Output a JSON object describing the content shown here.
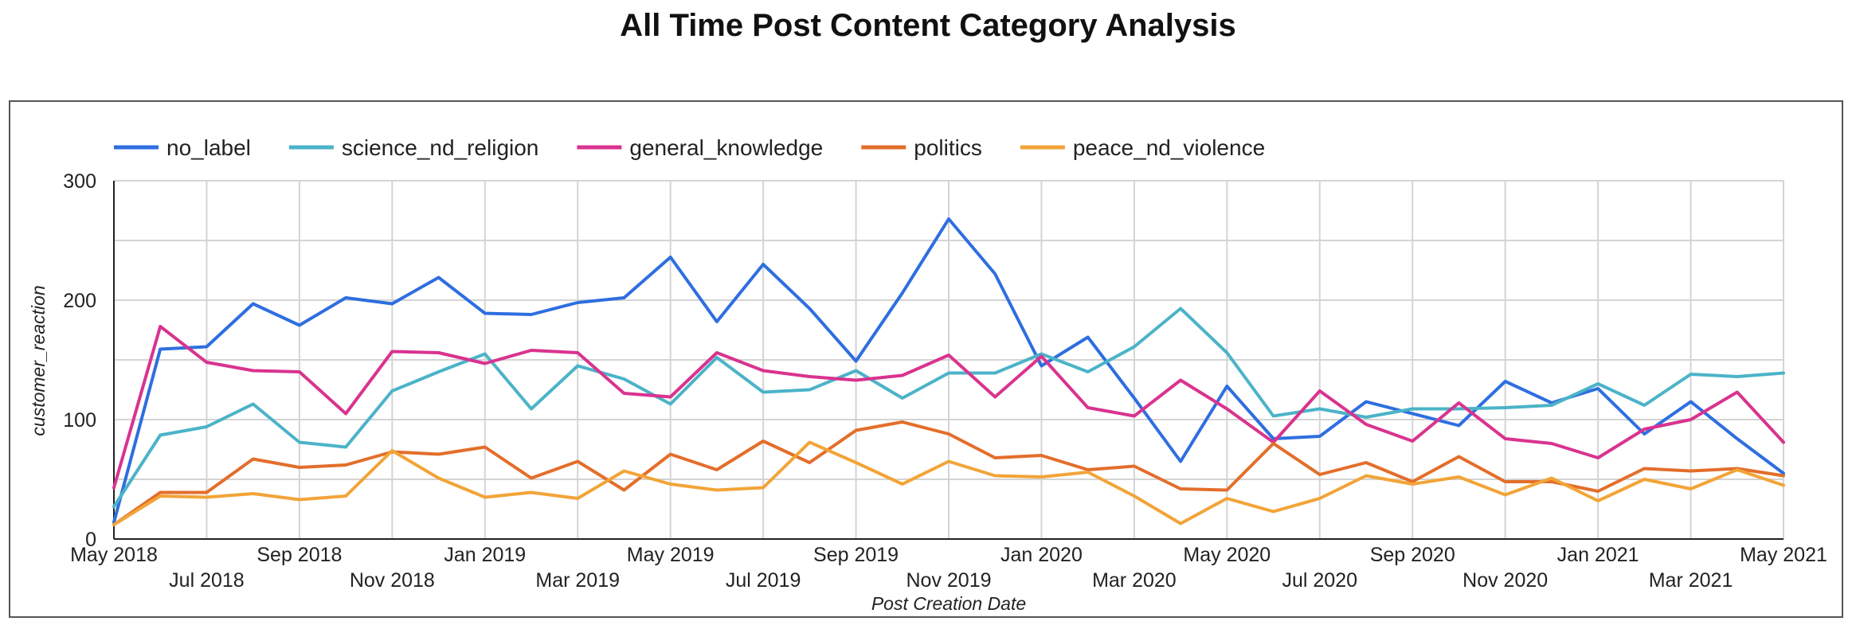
{
  "chart_data": {
    "type": "line",
    "title": "All Time Post Content Category Analysis",
    "xlabel": "Post Creation Date",
    "ylabel": "customer_reaction",
    "ylim": [
      0,
      300
    ],
    "yticks": [
      "0",
      "100",
      "200",
      "300"
    ],
    "grid": true,
    "legend_position": "top-left",
    "x": [
      "2018-05",
      "2018-06",
      "2018-07",
      "2018-08",
      "2018-09",
      "2018-10",
      "2018-11",
      "2018-12",
      "2019-01",
      "2019-02",
      "2019-03",
      "2019-04",
      "2019-05",
      "2019-06",
      "2019-07",
      "2019-08",
      "2019-09",
      "2019-10",
      "2019-11",
      "2019-12",
      "2020-01",
      "2020-02",
      "2020-03",
      "2020-04",
      "2020-05",
      "2020-06",
      "2020-07",
      "2020-08",
      "2020-09",
      "2020-10",
      "2020-11",
      "2020-12",
      "2021-01",
      "2021-02",
      "2021-03",
      "2021-04",
      "2021-05"
    ],
    "xticks": [
      {
        "x": "2018-05",
        "label": "May 2018"
      },
      {
        "x": "2018-07",
        "label": "Jul 2018"
      },
      {
        "x": "2018-09",
        "label": "Sep 2018"
      },
      {
        "x": "2018-11",
        "label": "Nov 2018"
      },
      {
        "x": "2019-01",
        "label": "Jan 2019"
      },
      {
        "x": "2019-03",
        "label": "Mar 2019"
      },
      {
        "x": "2019-05",
        "label": "May 2019"
      },
      {
        "x": "2019-07",
        "label": "Jul 2019"
      },
      {
        "x": "2019-09",
        "label": "Sep 2019"
      },
      {
        "x": "2019-11",
        "label": "Nov 2019"
      },
      {
        "x": "2020-01",
        "label": "Jan 2020"
      },
      {
        "x": "2020-03",
        "label": "Mar 2020"
      },
      {
        "x": "2020-05",
        "label": "May 2020"
      },
      {
        "x": "2020-07",
        "label": "Jul 2020"
      },
      {
        "x": "2020-09",
        "label": "Sep 2020"
      },
      {
        "x": "2020-11",
        "label": "Nov 2020"
      },
      {
        "x": "2021-01",
        "label": "Jan 2021"
      },
      {
        "x": "2021-03",
        "label": "Mar 2021"
      },
      {
        "x": "2021-05",
        "label": "May 2021"
      }
    ],
    "series": [
      {
        "name": "no_label",
        "color": "#2e6ee0",
        "values": [
          14,
          159,
          161,
          197,
          179,
          202,
          197,
          219,
          189,
          188,
          198,
          202,
          236,
          182,
          230,
          193,
          149,
          206,
          268,
          222,
          145,
          169,
          118,
          65,
          128,
          84,
          86,
          115,
          105,
          95,
          132,
          114,
          126,
          88,
          115,
          84,
          55
        ]
      },
      {
        "name": "science_nd_religion",
        "color": "#4bb3c8",
        "values": [
          27,
          87,
          94,
          113,
          81,
          77,
          124,
          140,
          155,
          109,
          145,
          134,
          113,
          152,
          123,
          125,
          141,
          118,
          139,
          139,
          155,
          140,
          161,
          193,
          156,
          103,
          109,
          102,
          109,
          109,
          110,
          112,
          130,
          112,
          138,
          136,
          139
        ]
      },
      {
        "name": "general_knowledge",
        "color": "#d9338f",
        "values": [
          43,
          178,
          148,
          141,
          140,
          105,
          157,
          156,
          147,
          158,
          156,
          122,
          119,
          156,
          141,
          136,
          133,
          137,
          154,
          119,
          153,
          110,
          103,
          133,
          109,
          81,
          124,
          96,
          82,
          114,
          84,
          80,
          68,
          92,
          100,
          123,
          81
        ]
      },
      {
        "name": "politics",
        "color": "#e36e2b",
        "values": [
          12,
          39,
          39,
          67,
          60,
          62,
          73,
          71,
          77,
          51,
          65,
          41,
          71,
          58,
          82,
          64,
          91,
          98,
          88,
          68,
          70,
          58,
          61,
          42,
          41,
          80,
          54,
          64,
          48,
          69,
          48,
          48,
          40,
          59,
          57,
          59,
          53
        ]
      },
      {
        "name": "peace_nd_violence",
        "color": "#f2a438",
        "values": [
          12,
          36,
          35,
          38,
          33,
          36,
          74,
          51,
          35,
          39,
          34,
          57,
          46,
          41,
          43,
          81,
          64,
          46,
          65,
          53,
          52,
          56,
          36,
          13,
          34,
          23,
          34,
          53,
          46,
          52,
          37,
          51,
          32,
          50,
          42,
          58,
          45
        ]
      }
    ]
  }
}
